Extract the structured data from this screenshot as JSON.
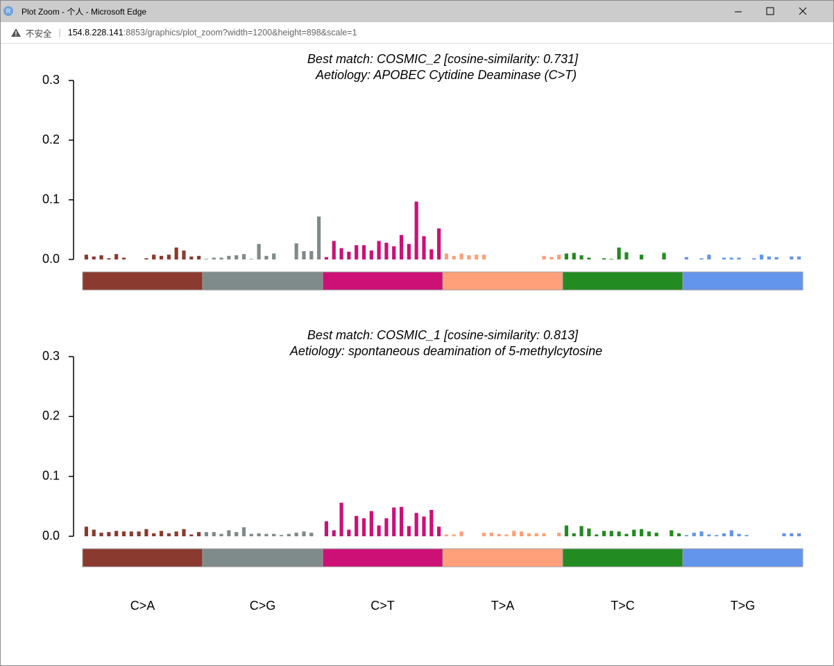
{
  "window": {
    "title": "Plot Zoom - 个人 - Microsoft Edge",
    "security": "不安全",
    "url_host": "154.8.228.141",
    "url_rest": ":8853/graphics/plot_zoom?width=1200&height=898&scale=1"
  },
  "chart_data": [
    {
      "type": "bar",
      "title": "Best match: COSMIC_2 [cosine-similarity: 0.731]",
      "subtitle": "Aetiology: APOBEC Cytidine Deaminase (C>T)",
      "ylim": [
        0,
        0.3
      ],
      "yticks": [
        {
          "value": 0,
          "label": "0.0"
        },
        0.1,
        0.2,
        0.3
      ],
      "series": [
        {
          "color": "#8B3A2F",
          "values": [
            0.008,
            0.005,
            0.007,
            0.002,
            0.009,
            0.003,
            0,
            0,
            0.002,
            0.008,
            0.006,
            0.008,
            0.02,
            0.015,
            0.005,
            0.006
          ]
        },
        {
          "color": "#7F8B8A",
          "values": [
            0.001,
            0.003,
            0.003,
            0.006,
            0.007,
            0.009,
            0.001,
            0.026,
            0.006,
            0.01,
            0,
            0,
            0.027,
            0.014,
            0.014,
            0.072
          ]
        },
        {
          "color": "#CD1076",
          "values": [
            0.004,
            0.031,
            0.019,
            0.013,
            0.024,
            0.024,
            0.015,
            0.031,
            0.028,
            0.022,
            0.041,
            0.026,
            0.097,
            0.039,
            0.017,
            0.052
          ]
        },
        {
          "color": "#FFA07A",
          "values": [
            0.01,
            0.006,
            0.01,
            0.007,
            0.008,
            0.008,
            0,
            0,
            0,
            0,
            0,
            0,
            0,
            0.006,
            0.004,
            0.008
          ]
        },
        {
          "color": "#228B22",
          "values": [
            0.01,
            0.011,
            0.007,
            0.003,
            0,
            0.002,
            0.001,
            0.02,
            0.012,
            0,
            0.008,
            0,
            0,
            0.011,
            0,
            0
          ]
        },
        {
          "color": "#6495ED",
          "values": [
            0.004,
            0,
            0.002,
            0.008,
            0,
            0.003,
            0.003,
            0.003,
            0,
            0.002,
            0.008,
            0.005,
            0.004,
            0,
            0.005,
            0.005
          ]
        }
      ]
    },
    {
      "type": "bar",
      "title": "Best match: COSMIC_1 [cosine-similarity: 0.813]",
      "subtitle": "Aetiology: spontaneous deamination of 5-methylcytosine",
      "ylim": [
        0,
        0.3
      ],
      "yticks": [
        {
          "value": 0,
          "label": "0.0"
        },
        0.1,
        0.2,
        0.3
      ],
      "series": [
        {
          "name": "C>A",
          "color": "#8B3A2F",
          "values": [
            0.016,
            0.011,
            0.006,
            0.007,
            0.009,
            0.008,
            0.008,
            0.008,
            0.012,
            0.005,
            0.009,
            0.005,
            0.008,
            0.012,
            0.003,
            0.007
          ]
        },
        {
          "name": "C>G",
          "color": "#7F8B8A",
          "values": [
            0.007,
            0.007,
            0.004,
            0.01,
            0.007,
            0.015,
            0.004,
            0.005,
            0.004,
            0.004,
            0.002,
            0.004,
            0.006,
            0.008,
            0.006,
            0
          ]
        },
        {
          "name": "C>T",
          "color": "#CD1076",
          "values": [
            0.025,
            0.01,
            0.056,
            0.011,
            0.034,
            0.03,
            0.042,
            0.018,
            0.03,
            0.048,
            0.049,
            0.017,
            0.039,
            0.033,
            0.044,
            0.016
          ]
        },
        {
          "name": "T>A",
          "color": "#FFA07A",
          "values": [
            0.003,
            0.003,
            0.008,
            0,
            0,
            0.006,
            0.006,
            0.004,
            0.003,
            0.009,
            0.008,
            0.005,
            0.005,
            0.005,
            0,
            0.006
          ]
        },
        {
          "name": "T>C",
          "color": "#228B22",
          "values": [
            0.018,
            0.005,
            0.017,
            0.013,
            0.003,
            0.009,
            0.009,
            0.008,
            0.004,
            0.011,
            0.012,
            0.008,
            0.006,
            0,
            0.01,
            0.005
          ]
        },
        {
          "name": "T>G",
          "color": "#6495ED",
          "values": [
            0.002,
            0.006,
            0.008,
            0.003,
            0.002,
            0.005,
            0.01,
            0.004,
            0.002,
            0,
            0,
            0,
            0,
            0.005,
            0.005,
            0.005
          ]
        }
      ]
    }
  ]
}
